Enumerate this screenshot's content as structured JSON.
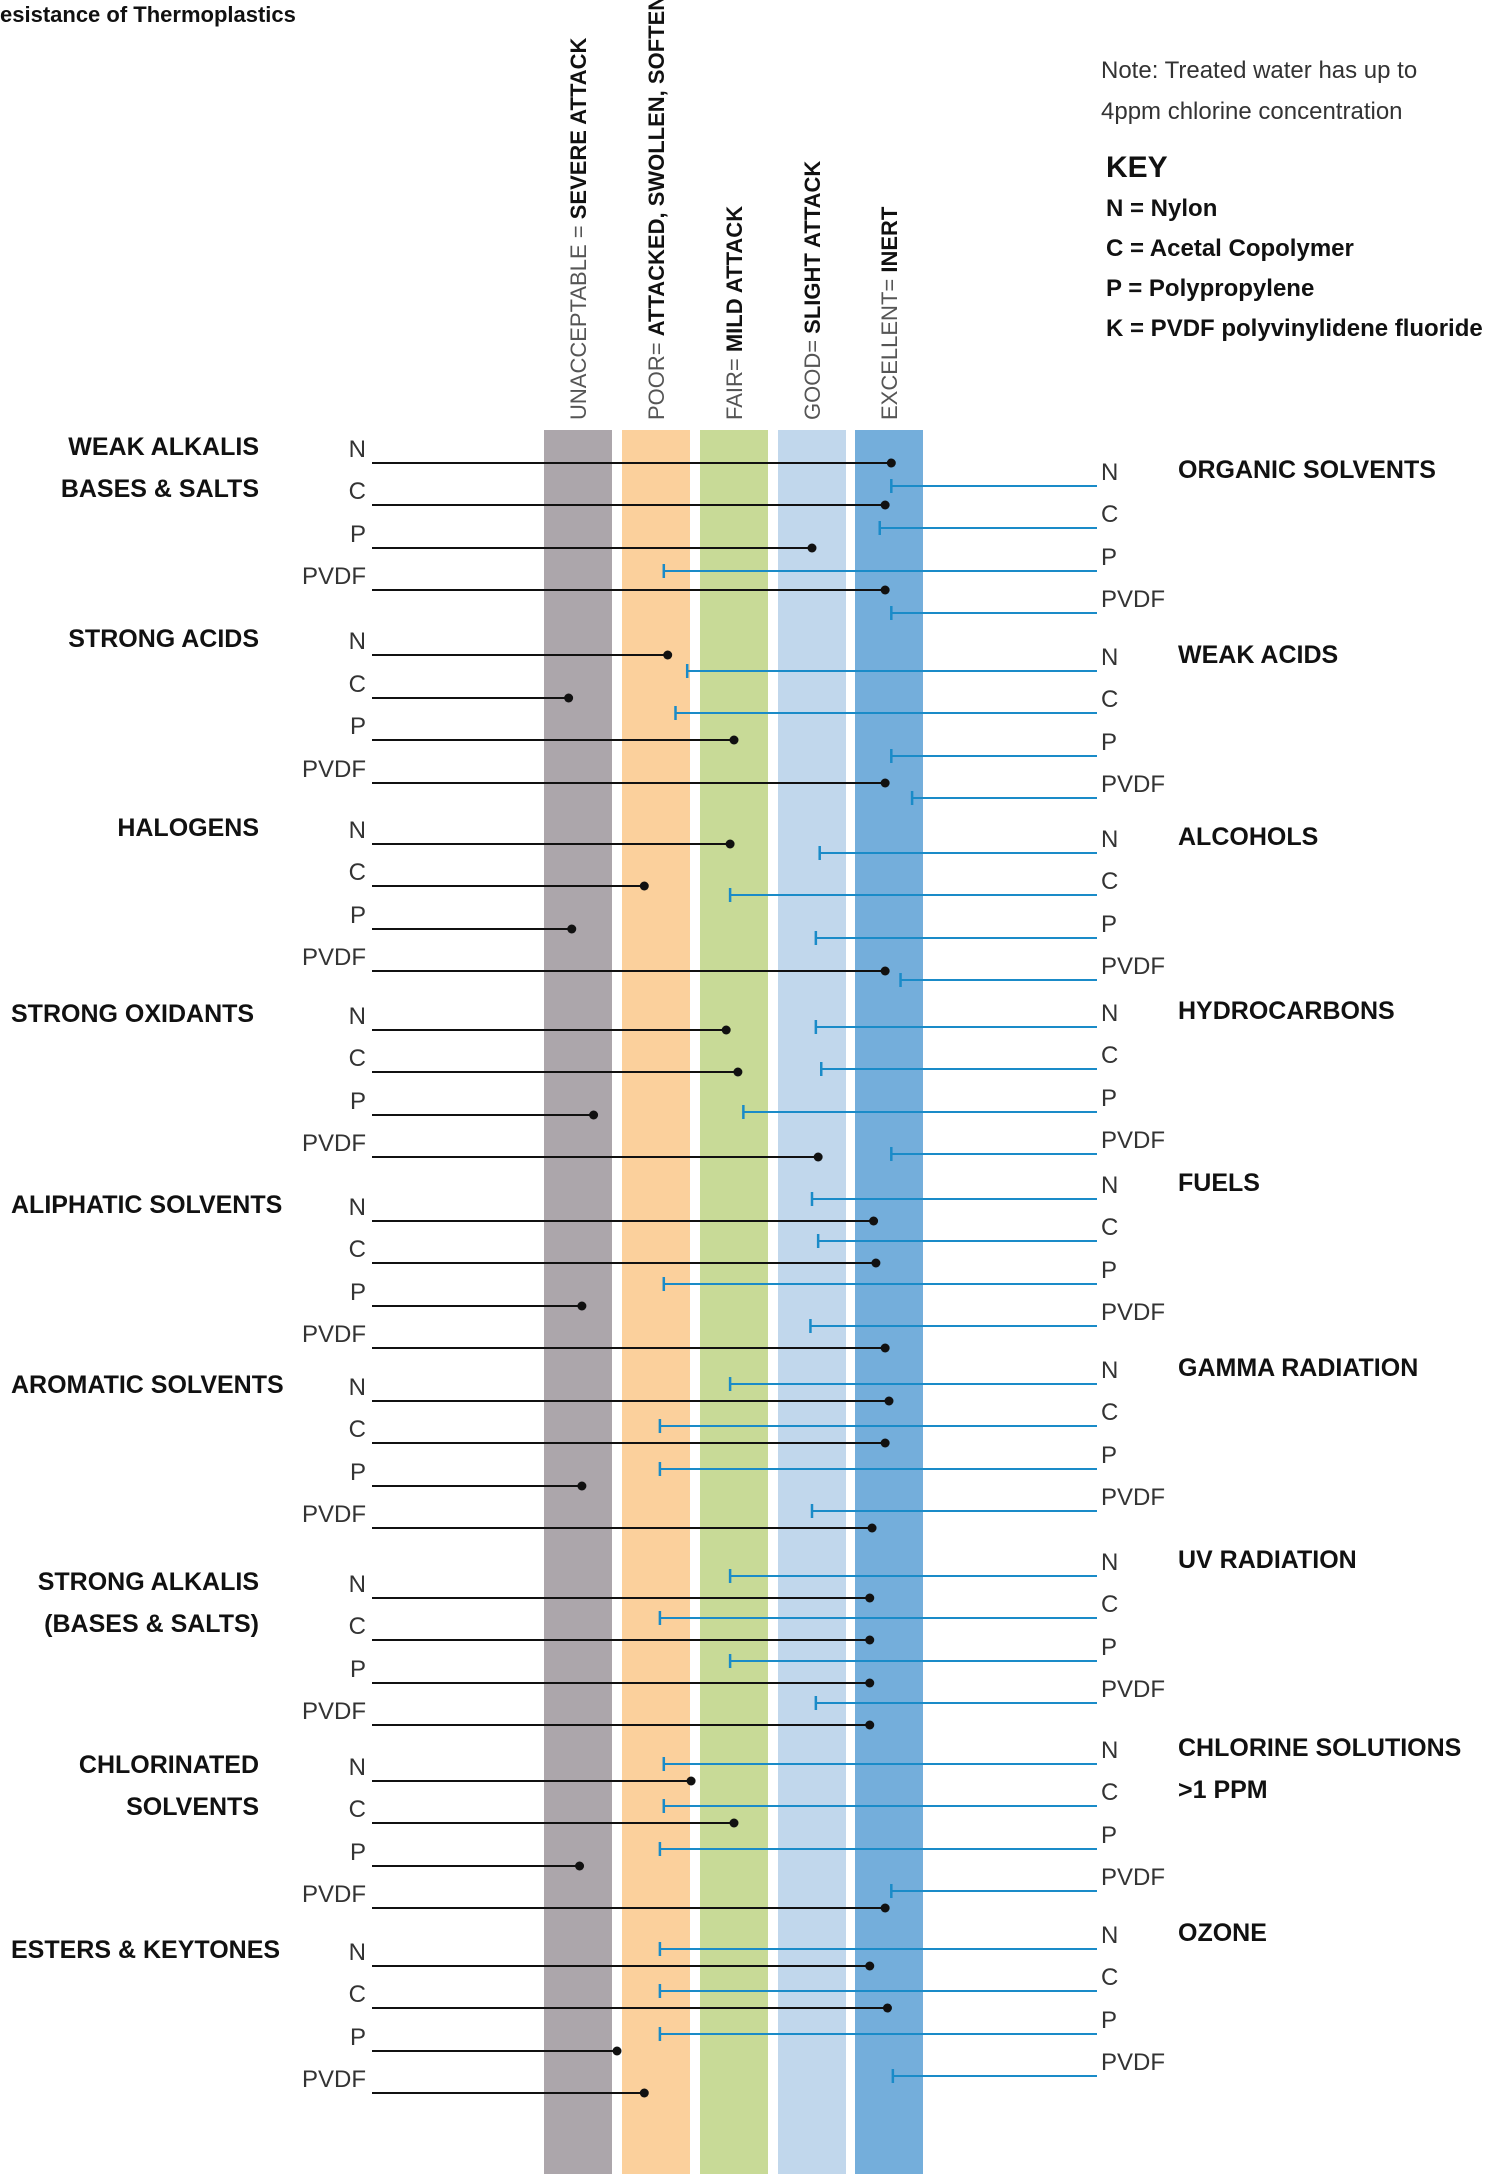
{
  "title": "esistance of Thermoplastics",
  "note": {
    "line1": "Note: Treated water has up to",
    "line2": "4ppm chlorine concentration"
  },
  "key": {
    "heading": "KEY",
    "items": [
      "N = Nylon",
      "C = Acetal Copolymer",
      "P = Polypropylene",
      "K = PVDF polyvinylidene fluoride"
    ]
  },
  "colors": {
    "unacceptable": "#aca6ab",
    "poor": "#fbd09c",
    "fair": "#c8da97",
    "good": "#c1d7ec",
    "excellent": "#74aedb",
    "left_line": "#111111",
    "right_line": "#1a8bc8"
  },
  "chart_data": {
    "type": "dot-line",
    "scale_note": "values in rating units: 0=unacceptable center, 1=poor, 2=fair, 3=good, 4=excellent",
    "columns": [
      {
        "light": "UNACCEPTABLE = ",
        "bold": "SEVERE ATTACK",
        "color_key": "unacceptable"
      },
      {
        "light": "POOR= ",
        "bold": "ATTACKED, SWOLLEN, SOFTENED",
        "color_key": "poor"
      },
      {
        "light": "FAIR= ",
        "bold": "MILD ATTACK",
        "color_key": "fair"
      },
      {
        "light": "GOOD= ",
        "bold": "SLIGHT ATTACK",
        "color_key": "good"
      },
      {
        "light": "EXCELLENT= ",
        "bold": "INERT",
        "color_key": "excellent"
      }
    ],
    "left_groups": [
      {
        "label": [
          "WEAK ALKALIS",
          "BASES & SALTS"
        ],
        "rows": [
          {
            "mat": "N",
            "value": 4.03
          },
          {
            "mat": "C",
            "value": 3.95
          },
          {
            "mat": "P",
            "value": 3.0
          },
          {
            "mat": "PVDF",
            "value": 3.95
          }
        ]
      },
      {
        "label": [
          "STRONG ACIDS"
        ],
        "rows": [
          {
            "mat": "N",
            "value": 1.15
          },
          {
            "mat": "C",
            "value": -0.12
          },
          {
            "mat": "P",
            "value": 2.0
          },
          {
            "mat": "PVDF",
            "value": 3.95
          }
        ]
      },
      {
        "label": [
          "HALOGENS"
        ],
        "rows": [
          {
            "mat": "N",
            "value": 1.95
          },
          {
            "mat": "C",
            "value": 0.85
          },
          {
            "mat": "P",
            "value": -0.08
          },
          {
            "mat": "PVDF",
            "value": 3.95
          }
        ]
      },
      {
        "label": [
          "STRONG OXIDANTS"
        ],
        "rows": [
          {
            "mat": "N",
            "value": 1.9
          },
          {
            "mat": "C",
            "value": 2.05
          },
          {
            "mat": "P",
            "value": 0.2
          },
          {
            "mat": "PVDF",
            "value": 3.08
          }
        ]
      },
      {
        "label": [
          "ALIPHATIC SOLVENTS"
        ],
        "rows": [
          {
            "mat": "N",
            "value": 3.8
          },
          {
            "mat": "C",
            "value": 3.83
          },
          {
            "mat": "P",
            "value": 0.05
          },
          {
            "mat": "PVDF",
            "value": 3.95
          }
        ]
      },
      {
        "label": [
          "AROMATIC SOLVENTS"
        ],
        "rows": [
          {
            "mat": "N",
            "value": 4.0
          },
          {
            "mat": "C",
            "value": 3.95
          },
          {
            "mat": "P",
            "value": 0.05
          },
          {
            "mat": "PVDF",
            "value": 3.78
          }
        ]
      },
      {
        "label": [
          "STRONG ALKALIS",
          "(BASES & SALTS)"
        ],
        "rows": [
          {
            "mat": "N",
            "value": 3.75
          },
          {
            "mat": "C",
            "value": 3.75
          },
          {
            "mat": "P",
            "value": 3.75
          },
          {
            "mat": "PVDF",
            "value": 3.75
          }
        ]
      },
      {
        "label": [
          "CHLORINATED",
          "SOLVENTS"
        ],
        "rows": [
          {
            "mat": "N",
            "value": 1.45
          },
          {
            "mat": "C",
            "value": 2.0
          },
          {
            "mat": "P",
            "value": 0.02
          },
          {
            "mat": "PVDF",
            "value": 3.95
          }
        ]
      },
      {
        "label": [
          "ESTERS & KEYTONES"
        ],
        "rows": [
          {
            "mat": "N",
            "value": 3.75
          },
          {
            "mat": "C",
            "value": 3.98
          },
          {
            "mat": "P",
            "value": 0.5
          },
          {
            "mat": "PVDF",
            "value": 0.85
          }
        ]
      }
    ],
    "right_groups": [
      {
        "label": [
          "ORGANIC SOLVENTS"
        ],
        "rows": [
          {
            "mat": "N",
            "value": 4.03
          },
          {
            "mat": "C",
            "value": 3.88
          },
          {
            "mat": "P",
            "value": 1.1
          },
          {
            "mat": "PVDF",
            "value": 4.03
          }
        ]
      },
      {
        "label": [
          "WEAK ACIDS"
        ],
        "rows": [
          {
            "mat": "N",
            "value": 1.4
          },
          {
            "mat": "C",
            "value": 1.25
          },
          {
            "mat": "P",
            "value": 4.03
          },
          {
            "mat": "PVDF",
            "value": 4.3
          }
        ]
      },
      {
        "label": [
          "ALCOHOLS"
        ],
        "rows": [
          {
            "mat": "N",
            "value": 3.1
          },
          {
            "mat": "C",
            "value": 1.95
          },
          {
            "mat": "P",
            "value": 3.05
          },
          {
            "mat": "PVDF",
            "value": 4.15
          }
        ]
      },
      {
        "label": [
          "HYDROCARBONS"
        ],
        "rows": [
          {
            "mat": "N",
            "value": 3.05
          },
          {
            "mat": "C",
            "value": 3.12
          },
          {
            "mat": "P",
            "value": 2.12
          },
          {
            "mat": "PVDF",
            "value": 4.03
          }
        ]
      },
      {
        "label": [
          "FUELS"
        ],
        "rows": [
          {
            "mat": "N",
            "value": 3.0
          },
          {
            "mat": "C",
            "value": 3.08
          },
          {
            "mat": "P",
            "value": 1.1
          },
          {
            "mat": "PVDF",
            "value": 2.98
          }
        ]
      },
      {
        "label": [
          "GAMMA RADIATION"
        ],
        "rows": [
          {
            "mat": "N",
            "value": 1.95
          },
          {
            "mat": "C",
            "value": 1.05
          },
          {
            "mat": "P",
            "value": 1.05
          },
          {
            "mat": "PVDF",
            "value": 3.0
          }
        ]
      },
      {
        "label": [
          "UV RADIATION"
        ],
        "rows": [
          {
            "mat": "N",
            "value": 1.95
          },
          {
            "mat": "C",
            "value": 1.05
          },
          {
            "mat": "P",
            "value": 1.95
          },
          {
            "mat": "PVDF",
            "value": 3.05
          }
        ]
      },
      {
        "label": [
          "CHLORINE SOLUTIONS",
          ">1 PPM"
        ],
        "rows": [
          {
            "mat": "N",
            "value": 1.1
          },
          {
            "mat": "C",
            "value": 1.1
          },
          {
            "mat": "P",
            "value": 1.05
          },
          {
            "mat": "PVDF",
            "value": 4.03
          }
        ]
      },
      {
        "label": [
          "OZONE"
        ],
        "rows": [
          {
            "mat": "N",
            "value": 1.05
          },
          {
            "mat": "C",
            "value": 1.05
          },
          {
            "mat": "P",
            "value": 1.05
          },
          {
            "mat": "PVDF",
            "value": 4.05
          }
        ]
      }
    ]
  }
}
